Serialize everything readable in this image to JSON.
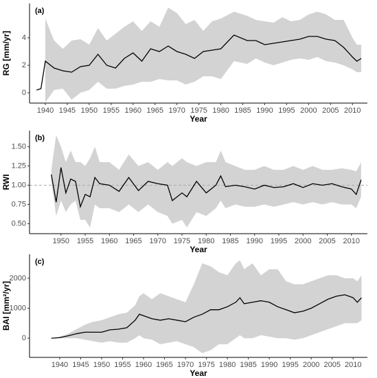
{
  "chart_data": [
    {
      "type": "line",
      "panel_label": "(a)",
      "xlabel": "Year",
      "ylabel": "RG [mm/yr]",
      "x": [
        1938,
        1939,
        1940,
        1942,
        1944,
        1946,
        1948,
        1950,
        1952,
        1954,
        1956,
        1958,
        1960,
        1962,
        1964,
        1966,
        1968,
        1970,
        1972,
        1974,
        1976,
        1978,
        1980,
        1983,
        1986,
        1988,
        1990,
        1992,
        1994,
        1996,
        1998,
        2000,
        2002,
        2004,
        2006,
        2008,
        2010,
        2011,
        2012
      ],
      "values": [
        0.2,
        0.3,
        2.3,
        1.8,
        1.6,
        1.5,
        1.9,
        2.0,
        2.8,
        2.0,
        1.8,
        2.5,
        2.9,
        2.3,
        3.2,
        3.0,
        3.4,
        3.0,
        2.8,
        2.5,
        3.0,
        3.1,
        3.2,
        4.2,
        3.8,
        3.8,
        3.5,
        3.6,
        3.7,
        3.8,
        3.9,
        4.1,
        4.1,
        3.9,
        3.8,
        3.3,
        2.6,
        2.3,
        2.5
      ],
      "upper": [
        null,
        null,
        5.4,
        3.8,
        3.2,
        3.8,
        3.9,
        3.5,
        4.7,
        3.8,
        4.3,
        4.8,
        5.2,
        4.5,
        5.2,
        4.8,
        6.2,
        5.8,
        5.0,
        5.3,
        4.5,
        5.2,
        5.4,
        5.9,
        5.6,
        5.3,
        5.2,
        5.1,
        5.5,
        5.2,
        5.3,
        5.7,
        5.9,
        5.7,
        5.3,
        5.3,
        4.0,
        3.5,
        3.5
      ],
      "lower": [
        null,
        null,
        -0.7,
        0.2,
        0.3,
        -0.5,
        0.0,
        0.2,
        0.8,
        0.3,
        0.3,
        0.5,
        0.6,
        0.8,
        0.8,
        1.0,
        0.9,
        0.9,
        0.6,
        0.8,
        1.2,
        1.2,
        1.0,
        2.3,
        2.1,
        2.5,
        2.2,
        2.0,
        2.2,
        2.4,
        2.5,
        2.4,
        2.6,
        2.3,
        2.2,
        2.0,
        1.7,
        1.5,
        1.5
      ],
      "color": "#000000",
      "band_color": "#d3d3d3",
      "xlim": [
        1936.4,
        2013.4
      ],
      "xticks": [
        1940,
        1945,
        1950,
        1955,
        1960,
        1965,
        1970,
        1975,
        1980,
        1985,
        1990,
        1995,
        2000,
        2005,
        2010
      ],
      "ylim": [
        -0.75,
        6.5
      ],
      "yticks": [
        0,
        2,
        4
      ]
    },
    {
      "type": "line",
      "panel_label": "(b)",
      "xlabel": "Year",
      "ylabel": "RWI",
      "x": [
        1948,
        1949,
        1950,
        1951,
        1952,
        1953,
        1954,
        1955,
        1956,
        1957,
        1958,
        1960,
        1962,
        1964,
        1966,
        1968,
        1970,
        1972,
        1973,
        1975,
        1976,
        1978,
        1980,
        1982,
        1983,
        1984,
        1986,
        1988,
        1990,
        1992,
        1994,
        1996,
        1998,
        2000,
        2002,
        2004,
        2006,
        2008,
        2010,
        2011,
        2012
      ],
      "values": [
        1.14,
        0.78,
        1.23,
        0.9,
        1.08,
        1.05,
        0.72,
        0.88,
        0.85,
        1.1,
        1.02,
        1.0,
        0.92,
        1.1,
        0.93,
        1.05,
        1.02,
        1.0,
        0.8,
        0.9,
        0.85,
        1.05,
        0.9,
        1.0,
        1.12,
        0.98,
        1.0,
        0.98,
        0.95,
        1.0,
        0.97,
        0.98,
        1.02,
        0.97,
        1.02,
        1.0,
        1.02,
        0.98,
        0.95,
        0.88,
        1.07
      ],
      "upper": [
        1.2,
        1.65,
        1.5,
        1.3,
        1.45,
        1.3,
        1.3,
        1.25,
        1.35,
        1.5,
        1.3,
        1.3,
        1.2,
        1.4,
        1.25,
        1.3,
        1.2,
        1.3,
        1.25,
        1.35,
        1.3,
        1.25,
        1.3,
        1.3,
        1.45,
        1.3,
        1.25,
        1.2,
        1.2,
        1.25,
        1.2,
        1.2,
        1.25,
        1.2,
        1.25,
        1.2,
        1.2,
        1.22,
        1.2,
        1.18,
        1.3
      ],
      "lower": [
        1.05,
        0.6,
        0.8,
        0.65,
        0.75,
        0.8,
        0.55,
        0.55,
        0.45,
        0.75,
        0.7,
        0.7,
        0.65,
        0.75,
        0.65,
        0.75,
        0.65,
        0.6,
        0.5,
        0.55,
        0.45,
        0.65,
        0.6,
        0.7,
        0.8,
        0.7,
        0.75,
        0.72,
        0.72,
        0.75,
        0.72,
        0.75,
        0.78,
        0.75,
        0.78,
        0.75,
        0.78,
        0.75,
        0.75,
        0.7,
        0.85
      ],
      "color": "#000000",
      "band_color": "#d3d3d3",
      "reference_line": 1,
      "xlim": [
        1943.5,
        2013.3
      ],
      "xticks": [
        1950,
        1955,
        1960,
        1965,
        1970,
        1975,
        1980,
        1985,
        1990,
        1995,
        2000,
        2005,
        2010
      ],
      "ylim": [
        0.37,
        1.71
      ],
      "yticks": [
        {
          "value": 0.5,
          "label": "0.50"
        },
        {
          "value": 0.75,
          "label": "0.75"
        },
        {
          "value": 1,
          "label": "1.00"
        },
        {
          "value": 1.25,
          "label": "1.25"
        },
        {
          "value": 1.5,
          "label": "1.50"
        }
      ]
    },
    {
      "type": "line",
      "panel_label": "(c)",
      "xlabel": "Year",
      "ylabel": "BAI [mm²/yr]",
      "x": [
        1938,
        1940,
        1942,
        1944,
        1946,
        1948,
        1950,
        1952,
        1954,
        1956,
        1958,
        1959,
        1960,
        1962,
        1964,
        1966,
        1968,
        1970,
        1972,
        1974,
        1976,
        1978,
        1980,
        1982,
        1983,
        1984,
        1986,
        1988,
        1990,
        1992,
        1994,
        1996,
        1998,
        2000,
        2002,
        2004,
        2006,
        2008,
        2010,
        2011,
        2012
      ],
      "values": [
        0,
        20,
        80,
        150,
        200,
        200,
        200,
        280,
        300,
        350,
        600,
        800,
        750,
        650,
        600,
        650,
        600,
        550,
        700,
        800,
        950,
        950,
        1050,
        1200,
        1350,
        1150,
        1200,
        1250,
        1200,
        1050,
        950,
        850,
        900,
        1000,
        1150,
        1300,
        1400,
        1450,
        1350,
        1200,
        1350
      ],
      "upper": [
        0,
        50,
        150,
        300,
        450,
        550,
        600,
        700,
        800,
        850,
        1100,
        1400,
        1500,
        1300,
        1500,
        1400,
        1300,
        1200,
        1800,
        2500,
        2400,
        2200,
        2100,
        2500,
        2600,
        2300,
        2500,
        2100,
        2300,
        2300,
        1900,
        1800,
        1800,
        1900,
        2000,
        2100,
        2100,
        2000,
        2000,
        1900,
        2100
      ],
      "lower": [
        0,
        0,
        0,
        0,
        -50,
        -100,
        -150,
        -100,
        -150,
        -150,
        0,
        100,
        0,
        -50,
        -200,
        -150,
        -100,
        -200,
        -300,
        -500,
        -400,
        -200,
        -200,
        0,
        100,
        0,
        0,
        100,
        50,
        0,
        0,
        -50,
        0,
        100,
        200,
        300,
        400,
        500,
        500,
        500,
        600
      ],
      "color": "#000000",
      "band_color": "#d3d3d3",
      "xlim": [
        1932.8,
        2013.4
      ],
      "xticks": [
        1940,
        1945,
        1950,
        1955,
        1960,
        1965,
        1970,
        1975,
        1980,
        1985,
        1990,
        1995,
        2000,
        2005,
        2010
      ],
      "ylim": [
        -640,
        2800
      ],
      "yticks": [
        0,
        1000,
        2000
      ]
    }
  ]
}
